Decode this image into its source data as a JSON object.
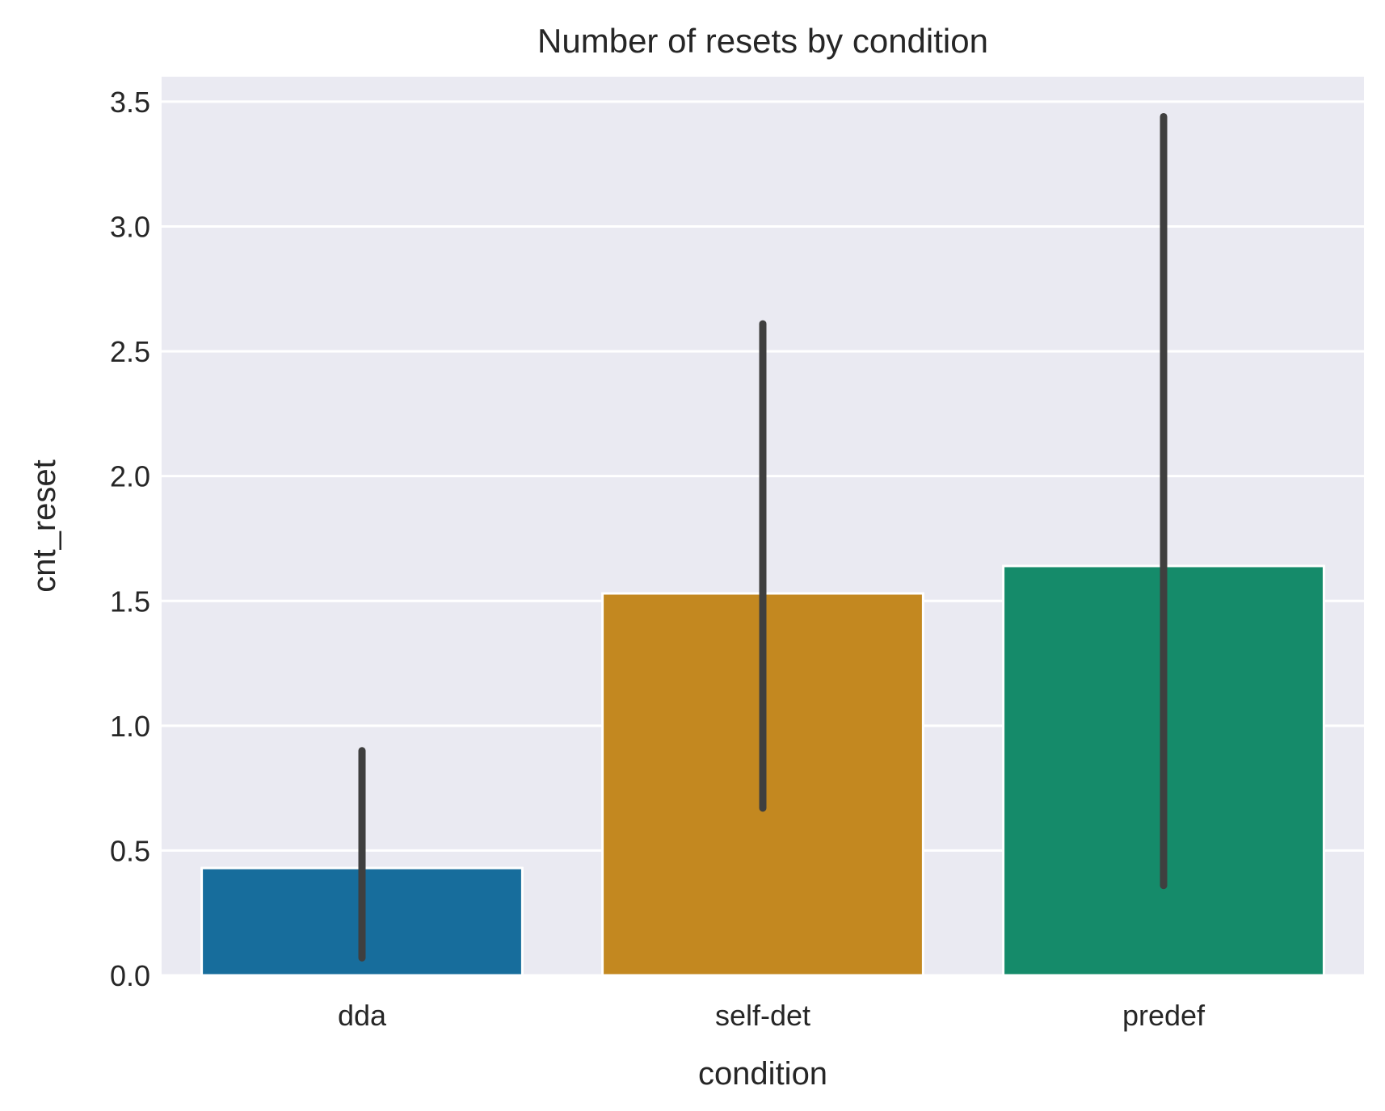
{
  "chart_data": {
    "type": "bar",
    "title": "Number of resets by condition",
    "xlabel": "condition",
    "ylabel": "cnt_reset",
    "categories": [
      "dda",
      "self-det",
      "predef"
    ],
    "values": [
      0.43,
      1.53,
      1.64
    ],
    "error_bars": [
      {
        "low": 0.07,
        "high": 0.9
      },
      {
        "low": 0.67,
        "high": 2.61
      },
      {
        "low": 0.36,
        "high": 3.44
      }
    ],
    "colors": [
      "#176d9c",
      "#c38820",
      "#158b6a"
    ],
    "error_bar_color": "#3f3f3f",
    "background_color": "#eaeaf2",
    "grid": true,
    "ylim": [
      0,
      3.6
    ],
    "yticks": [
      0.0,
      0.5,
      1.0,
      1.5,
      2.0,
      2.5,
      3.0,
      3.5
    ],
    "ytick_labels": [
      "0.0",
      "0.5",
      "1.0",
      "1.5",
      "2.0",
      "2.5",
      "3.0",
      "3.5"
    ]
  }
}
